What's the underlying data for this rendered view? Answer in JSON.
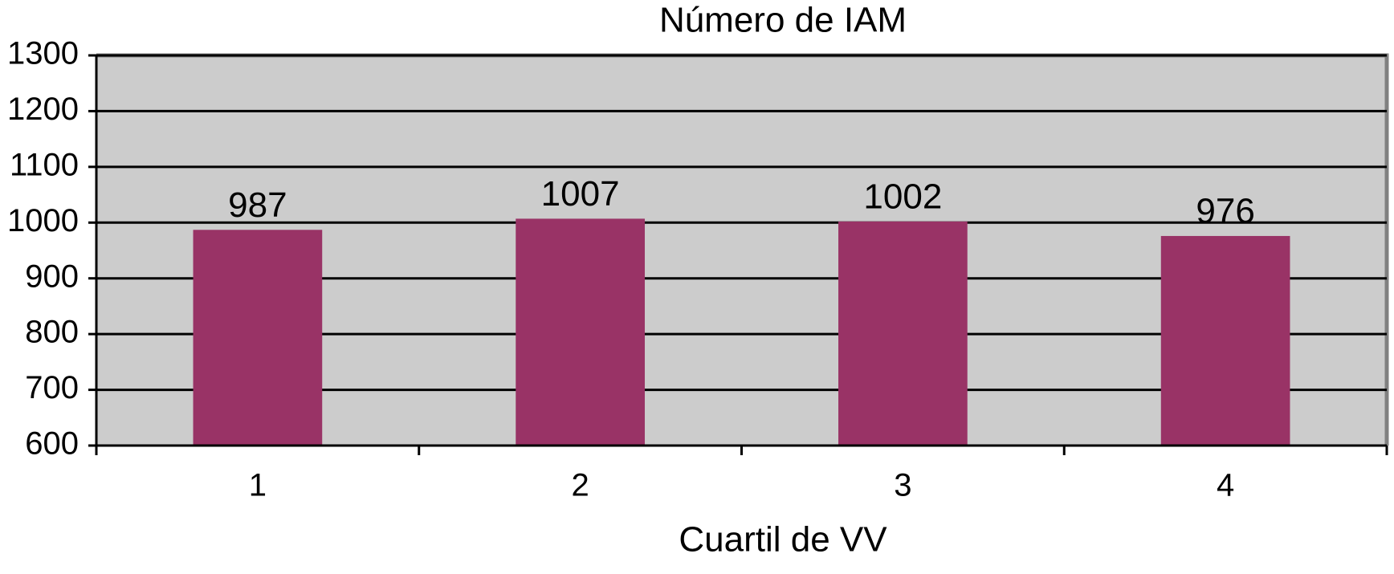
{
  "chart_data": {
    "type": "bar",
    "title": "Número de IAM",
    "x_label": "Cuartil de VV",
    "categories": [
      "1",
      "2",
      "3",
      "4"
    ],
    "values": [
      987,
      1007,
      1002,
      976
    ],
    "color": "#993366",
    "ylim": [
      600,
      1300
    ],
    "yticks": [
      600,
      700,
      800,
      900,
      1000,
      1100,
      1200,
      1300
    ],
    "grid": true
  }
}
